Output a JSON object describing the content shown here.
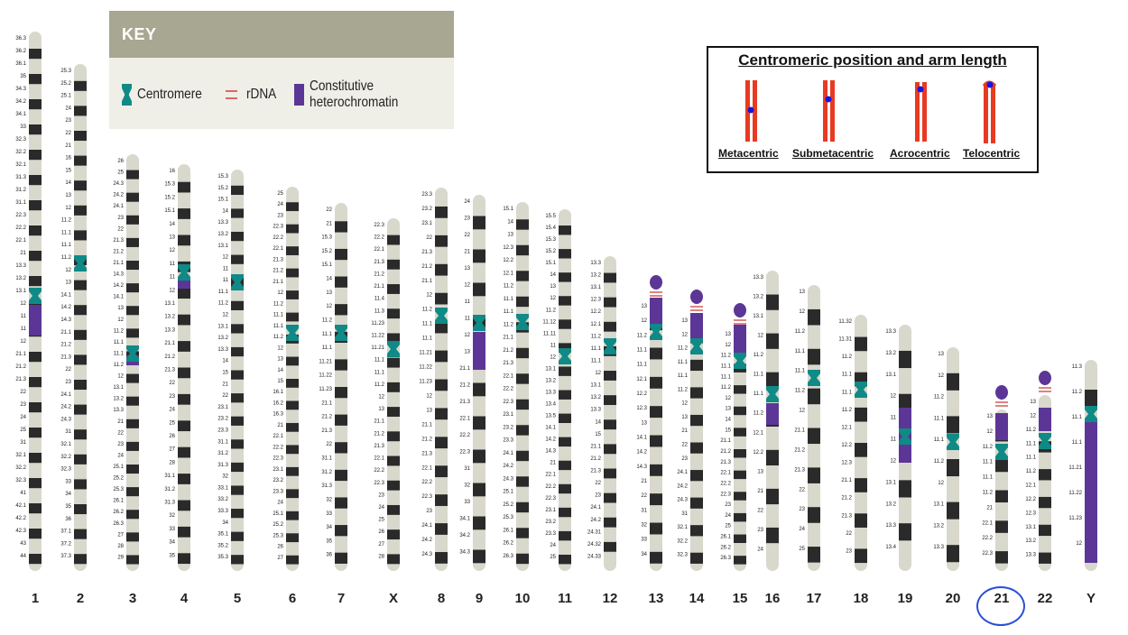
{
  "key": {
    "title": "KEY",
    "centromere_label": "Centromere",
    "rdna_label": "rDNA",
    "heterochromatin_label": "Constitutive heterochromatin",
    "colors": {
      "centromere": "#0f8a86",
      "rdna": "#d66666",
      "heterochromatin": "#5c3696",
      "band_dark": "#2a2a2a",
      "band_light": "#d9d8cc"
    }
  },
  "centromeric_position": {
    "title": "Centromeric position and arm length",
    "types": [
      "Metacentric",
      "Submetacentric",
      "Acrocentric",
      "Telocentric"
    ]
  },
  "chromosomes": [
    {
      "label": "1",
      "bands": [
        "36.3",
        "36.2",
        "36.1",
        "35",
        "34.3",
        "34.2",
        "34.1",
        "33",
        "32.3",
        "32.2",
        "32.1",
        "31.3",
        "31.2",
        "31.1",
        "22.3",
        "22.2",
        "22.1",
        "21",
        "13.3",
        "13.2",
        "13.1",
        "12",
        "11",
        "11",
        "12",
        "21.1",
        "21.2",
        "21.3",
        "22",
        "23",
        "24",
        "25",
        "31",
        "32.1",
        "32.2",
        "32.3",
        "41",
        "42.1",
        "42.2",
        "42.3",
        "43",
        "44"
      ]
    },
    {
      "label": "2",
      "bands": [
        "25.3",
        "25.2",
        "25.1",
        "24",
        "23",
        "22",
        "21",
        "16",
        "15",
        "14",
        "13",
        "12",
        "11.2",
        "11.1",
        "11.1",
        "11.2",
        "12",
        "13",
        "14.1",
        "14.2",
        "14.3",
        "21.1",
        "21.2",
        "21.3",
        "22",
        "23",
        "24.1",
        "24.2",
        "24.3",
        "31",
        "32.1",
        "32.2",
        "32.3",
        "33",
        "34",
        "35",
        "36",
        "37.1",
        "37.2",
        "37.3"
      ]
    },
    {
      "label": "3",
      "bands": [
        "26",
        "25",
        "24.3",
        "24.2",
        "24.1",
        "23",
        "22",
        "21.3",
        "21.2",
        "21.1",
        "14.3",
        "14.2",
        "14.1",
        "13",
        "12",
        "11.2",
        "11.1",
        "11.1",
        "11.2",
        "12",
        "13.1",
        "13.2",
        "13.3",
        "21",
        "22",
        "23",
        "24",
        "25.1",
        "25.2",
        "25.3",
        "26.1",
        "26.2",
        "26.3",
        "27",
        "28",
        "29"
      ]
    },
    {
      "label": "4",
      "bands": [
        "16",
        "15.3",
        "15.2",
        "15.1",
        "14",
        "13",
        "12",
        "11",
        "11",
        "12",
        "13.1",
        "13.2",
        "13.3",
        "21.1",
        "21.2",
        "21.3",
        "22",
        "23",
        "24",
        "25",
        "26",
        "27",
        "28",
        "31.1",
        "31.2",
        "31.3",
        "32",
        "33",
        "34",
        "35"
      ]
    },
    {
      "label": "5",
      "bands": [
        "15.3",
        "15.2",
        "15.1",
        "14",
        "13.3",
        "13.2",
        "13.1",
        "12",
        "11",
        "11",
        "11.1",
        "11.2",
        "12",
        "13.1",
        "13.2",
        "13.3",
        "14",
        "15",
        "21",
        "22",
        "23.1",
        "23.2",
        "23.3",
        "31.1",
        "31.2",
        "31.3",
        "32",
        "33.1",
        "33.2",
        "33.3",
        "34",
        "35.1",
        "35.2",
        "35.3"
      ]
    },
    {
      "label": "6",
      "bands": [
        "25",
        "24",
        "23",
        "22.3",
        "22.2",
        "22.1",
        "21.3",
        "21.2",
        "21.1",
        "12",
        "11.2",
        "11.1",
        "11.1",
        "11.2",
        "12",
        "13",
        "14",
        "15",
        "16.1",
        "16.2",
        "16.3",
        "21",
        "22.1",
        "22.2",
        "22.3",
        "23.1",
        "23.2",
        "23.3",
        "24",
        "25.1",
        "25.2",
        "25.3",
        "26",
        "27"
      ]
    },
    {
      "label": "7",
      "bands": [
        "22",
        "21",
        "15.3",
        "15.2",
        "15.1",
        "14",
        "13",
        "12",
        "11.2",
        "11.1",
        "11.1",
        "11.21",
        "11.22",
        "11.23",
        "21.1",
        "21.2",
        "21.3",
        "22",
        "31.1",
        "31.2",
        "31.3",
        "32",
        "33",
        "34",
        "35",
        "36"
      ]
    },
    {
      "label": "X",
      "bands": [
        "22.3",
        "22.2",
        "22.1",
        "21.3",
        "21.2",
        "21.1",
        "11.4",
        "11.3",
        "11.23",
        "11.22",
        "11.21",
        "11.1",
        "11.1",
        "11.2",
        "12",
        "13",
        "21.1",
        "21.2",
        "21.3",
        "22.1",
        "22.2",
        "22.3",
        "23",
        "24",
        "25",
        "26",
        "27",
        "28"
      ]
    },
    {
      "label": "8",
      "bands": [
        "23.3",
        "23.2",
        "23.1",
        "22",
        "21.3",
        "21.2",
        "21.1",
        "12",
        "11.2",
        "11.1",
        "11.1",
        "11.21",
        "11.22",
        "11.23",
        "12",
        "13",
        "21.1",
        "21.2",
        "21.3",
        "22.1",
        "22.2",
        "22.3",
        "23",
        "24.1",
        "24.2",
        "24.3"
      ]
    },
    {
      "label": "9",
      "bands": [
        "24",
        "23",
        "22",
        "21",
        "13",
        "12",
        "11",
        "11",
        "12",
        "13",
        "21.1",
        "21.2",
        "21.3",
        "22.1",
        "22.2",
        "22.3",
        "31",
        "32",
        "33",
        "34.1",
        "34.2",
        "34.3"
      ]
    },
    {
      "label": "10",
      "bands": [
        "15.1",
        "14",
        "13",
        "12.3",
        "12.2",
        "12.1",
        "11.2",
        "11.1",
        "11.1",
        "11.2",
        "21.1",
        "21.2",
        "21.3",
        "22.1",
        "22.2",
        "22.3",
        "23.1",
        "23.2",
        "23.3",
        "24.1",
        "24.2",
        "24.3",
        "25.1",
        "25.2",
        "25.3",
        "26.1",
        "26.2",
        "26.3"
      ]
    },
    {
      "label": "11",
      "bands": [
        "15.5",
        "15.4",
        "15.3",
        "15.2",
        "15.1",
        "14",
        "13",
        "12",
        "11.2",
        "11.12",
        "11.11",
        "11",
        "12",
        "13.1",
        "13.2",
        "13.3",
        "13.4",
        "13.5",
        "14.1",
        "14.2",
        "14.3",
        "21",
        "22.1",
        "22.2",
        "22.3",
        "23.1",
        "23.2",
        "23.3",
        "24",
        "25"
      ]
    },
    {
      "label": "12",
      "bands": [
        "13.3",
        "13.2",
        "13.1",
        "12.3",
        "12.2",
        "12.1",
        "11.2",
        "11.1",
        "11.1",
        "12",
        "13.1",
        "13.2",
        "13.3",
        "14",
        "15",
        "21.1",
        "21.2",
        "21.3",
        "22",
        "23",
        "24.1",
        "24.2",
        "24.31",
        "24.32",
        "24.33"
      ]
    },
    {
      "label": "13",
      "bands": [
        "13",
        "12",
        "11.2",
        "11.1",
        "11.1",
        "12.1",
        "12.2",
        "12.3",
        "13",
        "14.1",
        "14.2",
        "14.3",
        "21",
        "22",
        "31",
        "32",
        "33",
        "34"
      ]
    },
    {
      "label": "14",
      "bands": [
        "13",
        "12",
        "11.2",
        "11.1",
        "11.1",
        "11.2",
        "12",
        "13",
        "21",
        "22",
        "23",
        "24.1",
        "24.2",
        "24.3",
        "31",
        "32.1",
        "32.2",
        "32.3"
      ]
    },
    {
      "label": "15",
      "bands": [
        "13",
        "12",
        "11.2",
        "11.1",
        "11.1",
        "11.2",
        "12",
        "13",
        "14",
        "15",
        "21.1",
        "21.2",
        "21.3",
        "22.1",
        "22.2",
        "22.3",
        "23",
        "24",
        "25",
        "26.1",
        "26.2",
        "26.3"
      ]
    },
    {
      "label": "16",
      "bands": [
        "13.3",
        "13.2",
        "13.1",
        "12",
        "11.2",
        "11.1",
        "11.1",
        "11.2",
        "12.1",
        "12.2",
        "13",
        "21",
        "22",
        "23",
        "24"
      ]
    },
    {
      "label": "17",
      "bands": [
        "13",
        "12",
        "11.2",
        "11.1",
        "11.1",
        "11.2",
        "12",
        "21.1",
        "21.2",
        "21.3",
        "22",
        "23",
        "24",
        "25"
      ]
    },
    {
      "label": "18",
      "bands": [
        "11.32",
        "11.31",
        "11.2",
        "11.1",
        "11.1",
        "11.2",
        "12.1",
        "12.2",
        "12.3",
        "21.1",
        "21.2",
        "21.3",
        "22",
        "23"
      ]
    },
    {
      "label": "19",
      "bands": [
        "13.3",
        "13.2",
        "13.1",
        "12",
        "11",
        "11",
        "12",
        "13.1",
        "13.2",
        "13.3",
        "13.4"
      ]
    },
    {
      "label": "20",
      "bands": [
        "13",
        "12",
        "11.2",
        "11.1",
        "11.1",
        "11.2",
        "12",
        "13.1",
        "13.2",
        "13.3"
      ]
    },
    {
      "label": "21",
      "bands": [
        "13",
        "12",
        "11.2",
        "11.1",
        "11.1",
        "11.2",
        "21",
        "22.1",
        "22.2",
        "22.3"
      ]
    },
    {
      "label": "22",
      "bands": [
        "13",
        "12",
        "11.2",
        "11.1",
        "11.1",
        "11.2",
        "12.1",
        "12.2",
        "12.3",
        "13.1",
        "13.2",
        "13.3"
      ]
    },
    {
      "label": "Y",
      "bands": [
        "11.3",
        "11.2",
        "11.1",
        "11.1",
        "11.21",
        "11.22",
        "11.23",
        "12"
      ]
    }
  ]
}
